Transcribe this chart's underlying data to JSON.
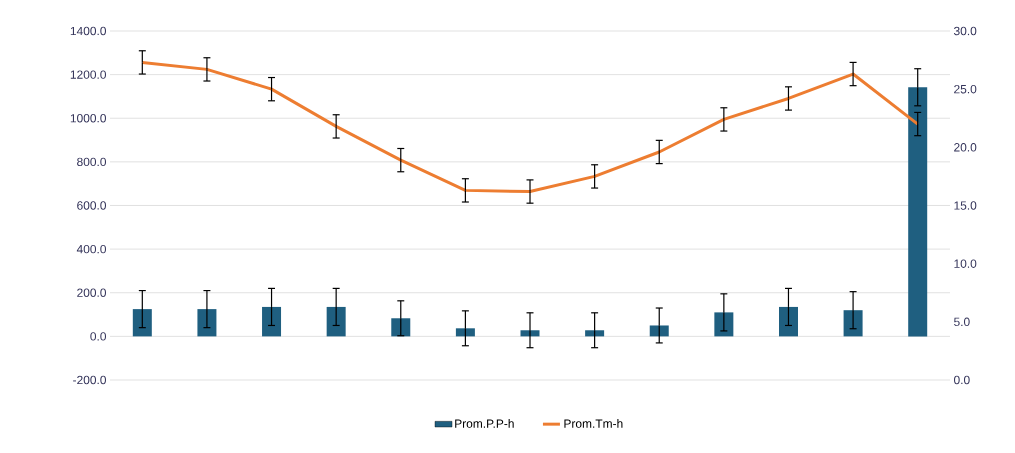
{
  "chart_data": {
    "type": "bar",
    "categories": [
      null,
      null,
      null,
      null,
      null,
      null,
      null,
      null,
      null,
      null,
      null,
      null,
      null
    ],
    "series": [
      {
        "name": "Prom.P.P-h",
        "color": "#1f5f80",
        "values": [
          125,
          125,
          135,
          135,
          83,
          37,
          28,
          28,
          50,
          110,
          135,
          120,
          1142
        ],
        "errors": [
          85,
          85,
          85,
          85,
          80,
          80,
          80,
          80,
          80,
          85,
          85,
          85,
          85
        ]
      },
      {
        "name": "Prom.Tm-h",
        "type": "line",
        "axis": "y2",
        "color": "#ed7d31",
        "values": [
          27.3,
          26.7,
          25.0,
          21.8,
          18.9,
          16.3,
          16.2,
          17.5,
          19.6,
          22.4,
          24.2,
          26.3,
          22.0
        ],
        "errors": [
          1.0,
          1.0,
          1.0,
          1.0,
          1.0,
          1.0,
          1.0,
          1.0,
          1.0,
          1.0,
          1.0,
          1.0,
          1.0
        ]
      }
    ],
    "ylim": [
      -200,
      1400
    ],
    "yticks": [
      {
        "value": -200,
        "label": "-200.0"
      },
      {
        "value": 0,
        "label": "0.0"
      },
      {
        "value": 200,
        "label": "200.0"
      },
      {
        "value": 400,
        "label": "400.0"
      },
      {
        "value": 600,
        "label": "600.0"
      },
      {
        "value": 800,
        "label": "800.0"
      },
      {
        "value": 1000,
        "label": "1000.0"
      },
      {
        "value": 1200,
        "label": "1200.0"
      },
      {
        "value": 1400,
        "label": "1400.0"
      }
    ],
    "y2lim": [
      0,
      30
    ],
    "y2ticks": [
      {
        "value": 0,
        "label": "0.0"
      },
      {
        "value": 5,
        "label": "5.0"
      },
      {
        "value": 10,
        "label": "10.0"
      },
      {
        "value": 15,
        "label": "15.0"
      },
      {
        "value": 20,
        "label": "20.0"
      },
      {
        "value": 25,
        "label": "25.0"
      },
      {
        "value": 30,
        "label": "30.0"
      }
    ],
    "grid": "y",
    "legend": "bottom",
    "marker": "none",
    "line_style": "solid"
  }
}
